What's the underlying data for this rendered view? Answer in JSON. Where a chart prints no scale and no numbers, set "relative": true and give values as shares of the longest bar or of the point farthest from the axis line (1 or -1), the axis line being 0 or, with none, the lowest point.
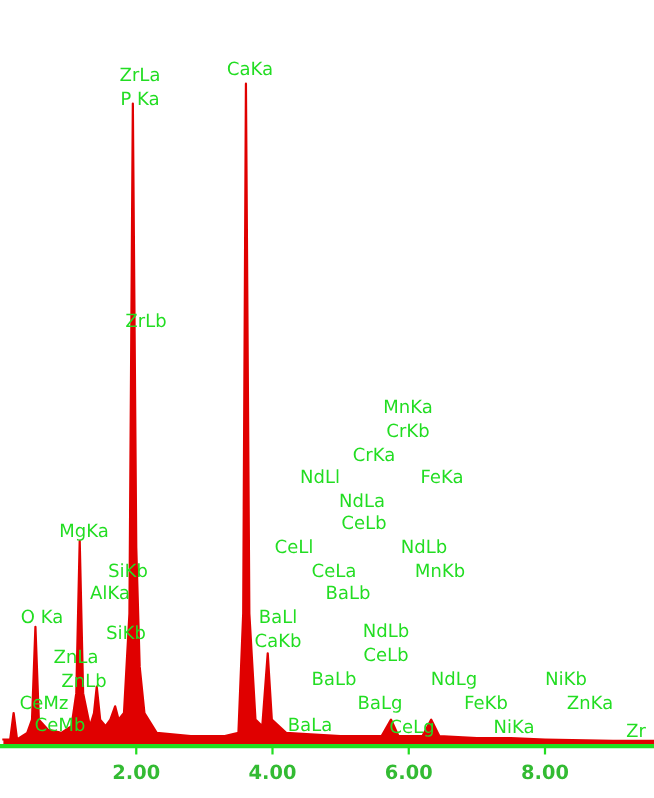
{
  "chart_data": {
    "type": "area",
    "relative": true,
    "tick_labels": "x",
    "grid": false,
    "legend": false,
    "xlim": [
      0,
      9.6
    ],
    "xticks": [
      {
        "value": 2,
        "label": "2.00"
      },
      {
        "value": 4,
        "label": "4.00"
      },
      {
        "value": 6,
        "label": "6.00"
      },
      {
        "value": 8,
        "label": "8.00"
      }
    ],
    "series": [
      {
        "color": "#e00000",
        "x": [
          0.05,
          0.15,
          0.2,
          0.25,
          0.4,
          0.47,
          0.52,
          0.57,
          0.7,
          0.9,
          1.05,
          1.12,
          1.17,
          1.22,
          1.32,
          1.38,
          1.42,
          1.47,
          1.55,
          1.62,
          1.69,
          1.74,
          1.82,
          1.9,
          1.95,
          2.0,
          2.05,
          2.12,
          2.3,
          2.8,
          3.3,
          3.5,
          3.57,
          3.61,
          3.66,
          3.75,
          3.85,
          3.93,
          3.99,
          4.2,
          4.5,
          5.0,
          5.6,
          5.74,
          5.85,
          6.2,
          6.33,
          6.45,
          7.0,
          7.5,
          8.0,
          9.0,
          9.6
        ],
        "values": [
          0.01,
          0.01,
          0.05,
          0.01,
          0.02,
          0.04,
          0.18,
          0.04,
          0.025,
          0.02,
          0.03,
          0.08,
          0.31,
          0.08,
          0.03,
          0.05,
          0.09,
          0.04,
          0.03,
          0.04,
          0.06,
          0.04,
          0.05,
          0.2,
          0.97,
          0.3,
          0.12,
          0.05,
          0.02,
          0.015,
          0.015,
          0.02,
          0.2,
          1.0,
          0.2,
          0.04,
          0.03,
          0.14,
          0.04,
          0.02,
          0.018,
          0.015,
          0.015,
          0.04,
          0.015,
          0.015,
          0.04,
          0.015,
          0.012,
          0.012,
          0.01,
          0.008,
          0.008
        ]
      }
    ],
    "annotations": [
      "ZrLa",
      "P Ka",
      "CaKa",
      "ZrLb",
      "MgKa",
      "SiKb",
      "AlKa",
      "O Ka",
      "SiKb",
      "ZnLa",
      "ZnLb",
      "CeMz",
      "CeMb",
      "BaLl",
      "CaKb",
      "BaLa",
      "MnKa",
      "CrKb",
      "CrKa",
      "NdLl",
      "FeKa",
      "NdLa",
      "CeLb",
      "CeLl",
      "NdLb",
      "CeLa",
      "MnKb",
      "BaLb",
      "NdLb",
      "CeLb",
      "BaLb",
      "NdLg",
      "NiKb",
      "BaLg",
      "FeKb",
      "ZnKa",
      "CeLg",
      "NiKa",
      "Zr"
    ]
  }
}
